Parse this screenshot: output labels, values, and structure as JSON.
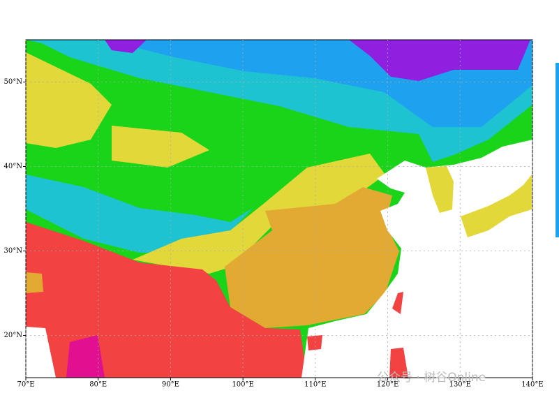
{
  "chart_data": {
    "type": "map",
    "xlim": [
      70,
      140
    ],
    "ylim": [
      15,
      55
    ],
    "xticks": [
      {
        "value": 70,
        "label": "70°E"
      },
      {
        "value": 80,
        "label": "80°E"
      },
      {
        "value": 90,
        "label": "90°E"
      },
      {
        "value": 100,
        "label": "100°E"
      },
      {
        "value": 110,
        "label": "110°E"
      },
      {
        "value": 120,
        "label": "120°E"
      },
      {
        "value": 130,
        "label": "130°E"
      },
      {
        "value": 140,
        "label": "140°E"
      }
    ],
    "yticks": [
      {
        "value": 20,
        "label": "20°N"
      },
      {
        "value": 30,
        "label": "30°N"
      },
      {
        "value": 40,
        "label": "40°N"
      },
      {
        "value": 50,
        "label": "50°N"
      }
    ],
    "grid": true,
    "annotation": "公众号 · 树谷Online"
  }
}
